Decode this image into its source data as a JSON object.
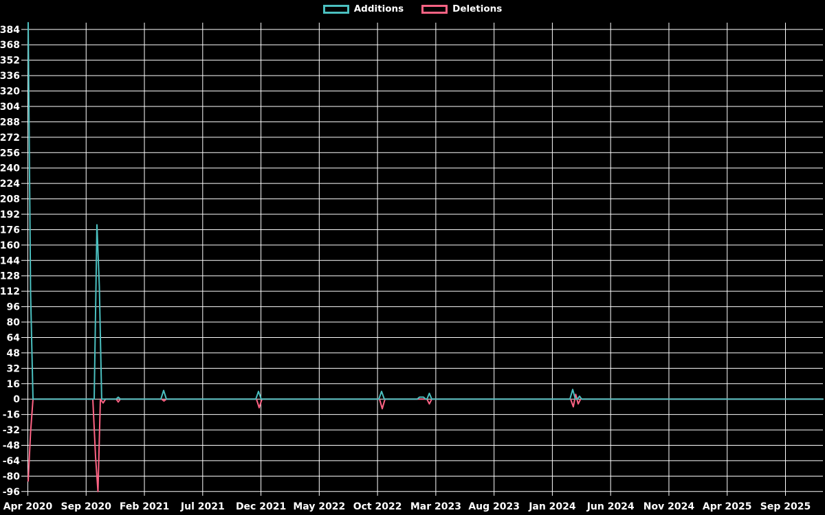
{
  "chart_data": {
    "type": "line",
    "title": "",
    "legend_position": "top-center",
    "grid": true,
    "colors": {
      "background": "#000000",
      "grid": "#ffffff",
      "text": "#ffffff",
      "additions": "#4bc0c0",
      "deletions": "#ff6384"
    },
    "x_tick_labels": [
      "Apr 2020",
      "Sep 2020",
      "Feb 2021",
      "Jul 2021",
      "Dec 2021",
      "May 2022",
      "Oct 2022",
      "Mar 2023",
      "Aug 2023",
      "Jan 2024",
      "Jun 2024",
      "Nov 2024",
      "Apr 2025",
      "Sep 2025"
    ],
    "y_ticks": [
      384,
      368,
      352,
      336,
      320,
      304,
      288,
      272,
      256,
      240,
      224,
      208,
      192,
      176,
      160,
      144,
      128,
      112,
      96,
      80,
      64,
      48,
      32,
      16,
      0,
      -16,
      -32,
      -48,
      -64,
      -80,
      -96
    ],
    "ylim": [
      -99,
      391
    ],
    "series": [
      {
        "name": "Additions",
        "color": "#4bc0c0",
        "points": [
          [
            0.0009,
            391
          ],
          [
            0.0039,
            110
          ],
          [
            0.0069,
            0
          ],
          [
            0.0838,
            0
          ],
          [
            0.0873,
            181
          ],
          [
            0.0903,
            117
          ],
          [
            0.0933,
            0
          ],
          [
            0.1115,
            0
          ],
          [
            0.1141,
            2
          ],
          [
            0.1167,
            0
          ],
          [
            0.1677,
            0
          ],
          [
            0.1711,
            9
          ],
          [
            0.1746,
            0
          ],
          [
            0.287,
            0
          ],
          [
            0.2904,
            8
          ],
          [
            0.2939,
            0
          ],
          [
            0.4417,
            0
          ],
          [
            0.4451,
            8
          ],
          [
            0.4486,
            0
          ],
          [
            0.4901,
            0
          ],
          [
            0.4927,
            2
          ],
          [
            0.4978,
            2
          ],
          [
            0.5004,
            0
          ],
          [
            0.5022,
            0
          ],
          [
            0.5052,
            6
          ],
          [
            0.5082,
            0
          ],
          [
            0.6819,
            0
          ],
          [
            0.6854,
            10
          ],
          [
            0.6888,
            0
          ],
          [
            0.6914,
            0
          ],
          [
            0.694,
            3
          ],
          [
            0.6966,
            0
          ],
          [
            1.0,
            0
          ]
        ]
      },
      {
        "name": "Deletions",
        "color": "#ff6384",
        "points": [
          [
            0.0009,
            -85
          ],
          [
            0.0039,
            -34
          ],
          [
            0.0069,
            0
          ],
          [
            0.0821,
            0
          ],
          [
            0.0856,
            -60
          ],
          [
            0.0886,
            -96
          ],
          [
            0.0916,
            0
          ],
          [
            0.0951,
            -4
          ],
          [
            0.0981,
            0
          ],
          [
            0.1115,
            0
          ],
          [
            0.1141,
            -3
          ],
          [
            0.1167,
            0
          ],
          [
            0.1685,
            0
          ],
          [
            0.1716,
            -2
          ],
          [
            0.1746,
            0
          ],
          [
            0.2878,
            0
          ],
          [
            0.2913,
            -9
          ],
          [
            0.2947,
            0
          ],
          [
            0.4425,
            0
          ],
          [
            0.446,
            -10
          ],
          [
            0.4494,
            0
          ],
          [
            0.5022,
            0
          ],
          [
            0.5052,
            -5
          ],
          [
            0.5082,
            0
          ],
          [
            0.6828,
            0
          ],
          [
            0.6862,
            -8
          ],
          [
            0.6892,
            5
          ],
          [
            0.6923,
            -5
          ],
          [
            0.6953,
            0
          ],
          [
            1.0,
            0
          ]
        ]
      }
    ]
  }
}
